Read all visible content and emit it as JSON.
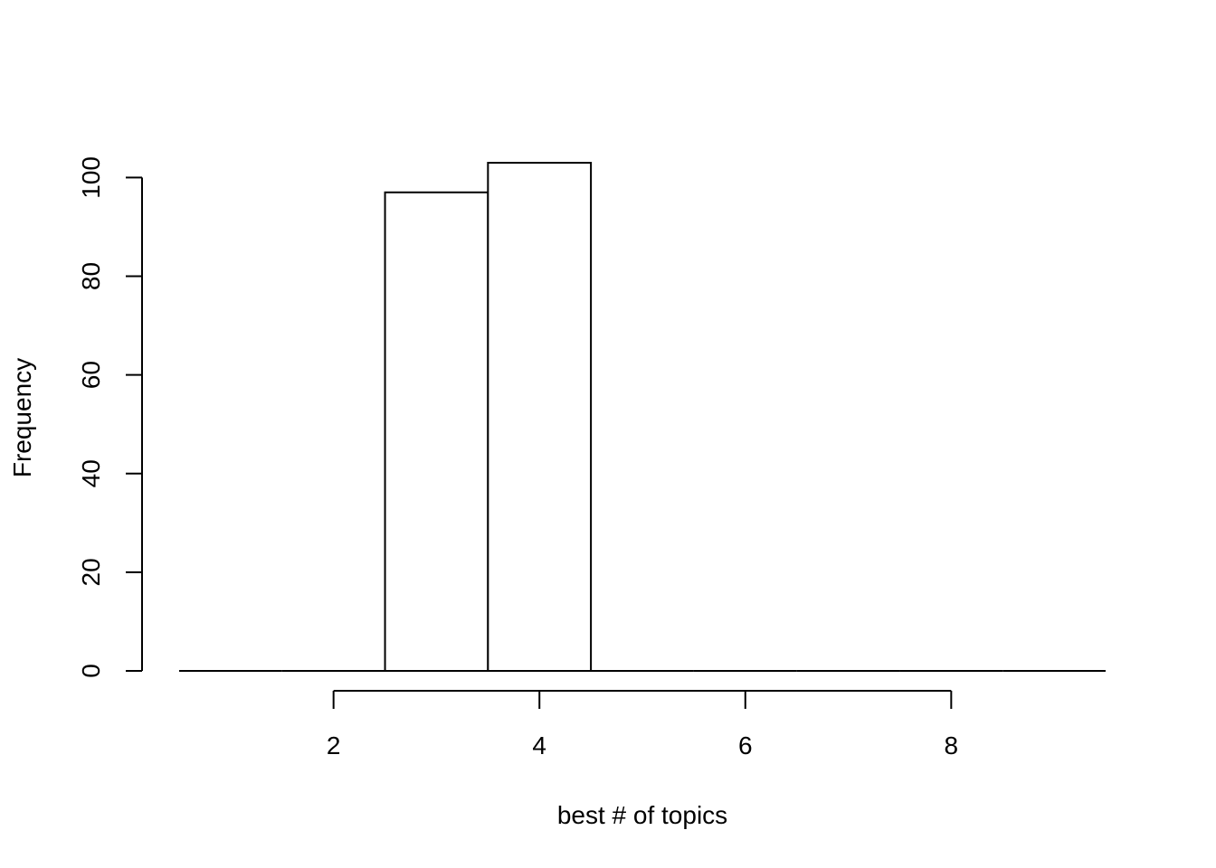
{
  "chart_data": {
    "type": "bar",
    "title": "",
    "xlabel": "best # of topics",
    "ylabel": "Frequency",
    "bins": [
      {
        "from": 0.5,
        "to": 1.5,
        "count": 0
      },
      {
        "from": 1.5,
        "to": 2.5,
        "count": 0
      },
      {
        "from": 2.5,
        "to": 3.5,
        "count": 97
      },
      {
        "from": 3.5,
        "to": 4.5,
        "count": 103
      },
      {
        "from": 4.5,
        "to": 5.5,
        "count": 0
      },
      {
        "from": 5.5,
        "to": 6.5,
        "count": 0
      },
      {
        "from": 6.5,
        "to": 7.5,
        "count": 0
      },
      {
        "from": 7.5,
        "to": 8.5,
        "count": 0
      },
      {
        "from": 8.5,
        "to": 9.5,
        "count": 0
      }
    ],
    "xlim": [
      0.5,
      9.5
    ],
    "ylim": [
      0,
      103
    ],
    "x_ticks": [
      {
        "value": 2,
        "label": "2"
      },
      {
        "value": 4,
        "label": "4"
      },
      {
        "value": 6,
        "label": "6"
      },
      {
        "value": 8,
        "label": "8"
      }
    ],
    "y_ticks": [
      {
        "value": 0,
        "label": "0"
      },
      {
        "value": 20,
        "label": "20"
      },
      {
        "value": 40,
        "label": "40"
      },
      {
        "value": 60,
        "label": "60"
      },
      {
        "value": 80,
        "label": "80"
      },
      {
        "value": 100,
        "label": "100"
      }
    ],
    "grid": false,
    "legend": "none",
    "bar_fill": "#ffffff",
    "bar_stroke": "#000000"
  }
}
